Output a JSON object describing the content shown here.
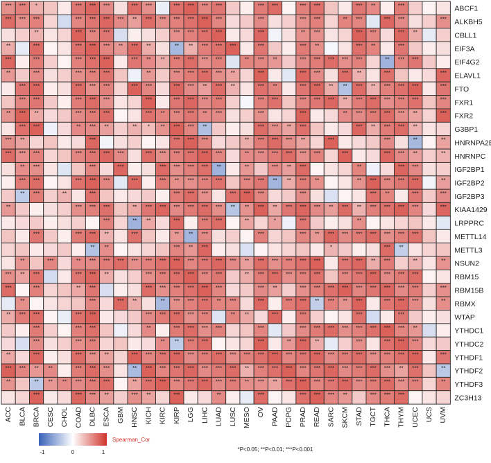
{
  "chart_data": {
    "type": "heatmap",
    "columns": [
      "ACC",
      "BLCA",
      "BRCA",
      "CESC",
      "CHOL",
      "COAD",
      "DLBC",
      "ESCA",
      "GBM",
      "HNSC",
      "KICH",
      "KIRC",
      "KIRP",
      "LGG",
      "LIHC",
      "LUAD",
      "LUSC",
      "MESO",
      "OV",
      "PAAD",
      "PCPG",
      "PRAD",
      "READ",
      "SARC",
      "SKCM",
      "STAD",
      "TGCT",
      "THCA",
      "THYM",
      "UCEC",
      "UCS",
      "UVM"
    ],
    "rows": [
      "ABCF1",
      "ALKBH5",
      "CBLL1",
      "EIF3A",
      "EIF4G2",
      "ELAVL1",
      "FTO",
      "FXR1",
      "FXR2",
      "G3BP1",
      "HNRNPA2B1",
      "HNRNPC",
      "IGF2BP1",
      "IGF2BP2",
      "IGF2BP3",
      "KIAA1429",
      "LRPPRC",
      "METTL14",
      "METTL3",
      "NSUN2",
      "RBM15",
      "RBM15B",
      "RBMX",
      "WTAP",
      "YTHDC1",
      "YTHDC2",
      "YTHDF1",
      "YTHDF2",
      "YTHDF3",
      "ZC3H13"
    ],
    "stars": [
      [
        "***",
        "***",
        "*",
        "",
        "",
        "***",
        "***",
        "***",
        "",
        "***",
        "***",
        "",
        "***",
        "***",
        "***",
        "***",
        "",
        "",
        "***",
        "***",
        "",
        "***",
        "***",
        "",
        "",
        "***",
        "**",
        "",
        "***",
        "",
        "",
        ""
      ],
      [
        "***",
        "***",
        "***",
        "",
        "",
        "***",
        "***",
        "***",
        "***",
        "**",
        "***",
        "***",
        "***",
        "***",
        "***",
        "***",
        "",
        "",
        "***",
        "",
        "",
        "***",
        "***",
        "",
        "**",
        "***",
        "",
        "***",
        "***",
        "",
        "",
        "***"
      ],
      [
        "",
        "",
        "**",
        "",
        "",
        "***",
        "***",
        "***",
        "",
        "",
        "",
        "",
        "***",
        "***",
        "***",
        "***",
        "",
        "",
        "***",
        "",
        "",
        "**",
        "***",
        "",
        "",
        "***",
        "***",
        "",
        "***",
        "**",
        "",
        ""
      ],
      [
        "**",
        "",
        "***",
        "",
        "",
        "***",
        "***",
        "***",
        "**",
        "***",
        "**",
        "",
        "**",
        "**",
        "***",
        "***",
        "***",
        "",
        "***",
        "",
        "",
        "***",
        "**",
        "",
        "",
        "***",
        "**",
        "",
        "***",
        "",
        "",
        ""
      ],
      [
        "***",
        "",
        "***",
        "",
        "",
        "***",
        "***",
        "***",
        "",
        "***",
        "**",
        "**",
        "***",
        "***",
        "***",
        "***",
        "",
        "**",
        "***",
        "**",
        "",
        "***",
        "***",
        "***",
        "***",
        "***",
        "",
        "**",
        "***",
        "***",
        "",
        ""
      ],
      [
        "**",
        "",
        "***",
        "",
        "",
        "***",
        "***",
        "***",
        "",
        "",
        "**",
        "",
        "***",
        "***",
        "***",
        "***",
        "**",
        "",
        "***",
        "",
        "",
        "***",
        "***",
        "",
        "***",
        "**",
        "",
        "***",
        "",
        "",
        "",
        "***"
      ],
      [
        "",
        "***",
        "***",
        "",
        "",
        "***",
        "***",
        "***",
        "",
        "***",
        "***",
        "",
        "***",
        "***",
        "**",
        "***",
        "**",
        "",
        "***",
        "**",
        "",
        "***",
        "***",
        "**",
        "**",
        "***",
        "**",
        "***",
        "***",
        "***",
        "",
        "***"
      ],
      [
        "",
        "***",
        "***",
        "",
        "",
        "***",
        "***",
        "***",
        "",
        "",
        "***",
        "",
        "***",
        "***",
        "***",
        "***",
        "",
        "",
        "***",
        "***",
        "",
        "***",
        "***",
        "***",
        "**",
        "***",
        "***",
        "***",
        "***",
        "***",
        "",
        "***"
      ],
      [
        "**",
        "***",
        "**",
        "",
        "",
        "***",
        "***",
        "***",
        "",
        "",
        "***",
        "**",
        "***",
        "***",
        "**",
        "***",
        "",
        "",
        "***",
        "",
        "",
        "***",
        "",
        "",
        "**",
        "***",
        "***",
        "***",
        "***",
        "**",
        "",
        "***"
      ],
      [
        "",
        "***",
        "***",
        "",
        "",
        "**",
        "***",
        "**",
        "",
        "**",
        "*",
        "**",
        "***",
        "***",
        "**",
        "",
        "",
        "",
        "***",
        "***",
        "**",
        "***",
        "",
        "",
        "",
        "***",
        "**",
        "***",
        "***",
        "**",
        "",
        ""
      ],
      [
        "***",
        "**",
        "",
        "",
        "",
        "",
        "***",
        "",
        "",
        "",
        "",
        "",
        "***",
        "***",
        "***",
        "",
        "",
        "**",
        "***",
        "***",
        "***",
        "**",
        "",
        "***",
        "",
        "",
        "",
        "***",
        "",
        "**",
        "",
        "**"
      ],
      [
        "***",
        "***",
        "***",
        "",
        "",
        "***",
        "***",
        "***",
        "***",
        "",
        "***",
        "***",
        "***",
        "***",
        "***",
        "***",
        "",
        "**",
        "***",
        "***",
        "***",
        "***",
        "***",
        "",
        "***",
        "",
        "",
        "***",
        "***",
        "**",
        "",
        "**"
      ],
      [
        "",
        "**",
        "***",
        "",
        "",
        "",
        "***",
        "",
        "***",
        "",
        "",
        "***",
        "***",
        "***",
        "***",
        "**",
        "",
        "**",
        "",
        "***",
        "**",
        "***",
        "",
        "",
        "",
        "**",
        "",
        "",
        "***",
        "***",
        "",
        ""
      ],
      [
        "",
        "***",
        "***",
        "",
        "",
        "***",
        "***",
        "***",
        "",
        "***",
        "",
        "***",
        "**",
        "***",
        "***",
        "***",
        "",
        "***",
        "***",
        "**",
        "**",
        "***",
        "**",
        "",
        "",
        "**",
        "***",
        "***",
        "***",
        "***",
        "",
        "**"
      ],
      [
        "",
        "**",
        "***",
        "",
        "**",
        "",
        "***",
        "",
        "",
        "",
        "",
        "",
        "***",
        "***",
        "***",
        "",
        "***",
        "***",
        "***",
        "",
        "",
        "***",
        "",
        "",
        "",
        "",
        "***",
        "**",
        "",
        "***",
        "",
        "***"
      ],
      [
        "**",
        "",
        "",
        "",
        "",
        "***",
        "***",
        "***",
        "",
        "**",
        "***",
        "***",
        "***",
        "***",
        "***",
        "***",
        "**",
        "**",
        "***",
        "**",
        "***",
        "***",
        "***",
        "**",
        "***",
        "**",
        "***",
        "***",
        "***",
        "***",
        "",
        "***"
      ],
      [
        "",
        "",
        "",
        "",
        "",
        "",
        "",
        "***",
        "",
        "**",
        "**",
        "",
        "***",
        "",
        "***",
        "***",
        "",
        "**",
        "",
        "*",
        "",
        "***",
        "",
        "",
        "",
        "**",
        "",
        "",
        "",
        "",
        "",
        ""
      ],
      [
        "",
        "",
        "***",
        "",
        "",
        "***",
        "***",
        "**",
        "",
        "***",
        "",
        "",
        "**",
        "**",
        "***",
        "",
        "",
        "",
        "***",
        "",
        "",
        "***",
        "**",
        "***",
        "***",
        "***",
        "***",
        "***",
        "***",
        "***",
        "",
        ""
      ],
      [
        "",
        "",
        "",
        "",
        "",
        "",
        "**",
        "**",
        "",
        "",
        "",
        "",
        "***",
        "**",
        "***",
        "",
        "",
        "",
        "",
        "",
        "",
        "",
        "",
        "*",
        "",
        "",
        "",
        "***",
        "**",
        "",
        "",
        ""
      ],
      [
        "",
        "**",
        "",
        "***",
        "",
        "**",
        "***",
        "***",
        "***",
        "***",
        "***",
        "***",
        "***",
        "***",
        "***",
        "***",
        "***",
        "**",
        "***",
        "***",
        "***",
        "***",
        "***",
        "",
        "***",
        "***",
        "**",
        "***",
        "",
        "**",
        "",
        "**"
      ],
      [
        "***",
        "**",
        "***",
        "",
        "",
        "***",
        "***",
        "**",
        "",
        "",
        "***",
        "***",
        "***",
        "***",
        "***",
        "***",
        "",
        "**",
        "***",
        "***",
        "***",
        "***",
        "***",
        "",
        "***",
        "***",
        "***",
        "***",
        "***",
        "***",
        "",
        ""
      ],
      [
        "***",
        "",
        "***",
        "",
        "",
        "**",
        "***",
        "",
        "",
        "",
        "***",
        "***",
        "***",
        "***",
        "***",
        "***",
        "",
        "",
        "***",
        "**",
        "",
        "***",
        "***",
        "***",
        "***",
        "***",
        "***",
        "***",
        "***",
        "***",
        "",
        "***"
      ],
      [
        "",
        "**",
        "",
        "",
        "",
        "",
        "***",
        "",
        "***",
        "**",
        "",
        "**",
        "***",
        "***",
        "***",
        "**",
        "***",
        "",
        "***",
        "",
        "***",
        "***",
        "**",
        "***",
        "**",
        "***",
        "",
        "***",
        "***",
        "***",
        "",
        "**"
      ],
      [
        "**",
        "***",
        "***",
        "",
        "",
        "***",
        "***",
        "",
        "",
        "",
        "***",
        "***",
        "***",
        "***",
        "***",
        "",
        "**",
        "**",
        "",
        "***",
        "",
        "***",
        "",
        "",
        "",
        "***",
        "",
        "",
        "***",
        "",
        "",
        ""
      ],
      [
        "",
        "",
        "***",
        "",
        "",
        "***",
        "***",
        "",
        "",
        "",
        "**",
        "",
        "***",
        "***",
        "***",
        "***",
        "",
        "",
        "***",
        "",
        "",
        "***",
        "***",
        "***",
        "***",
        "***",
        "***",
        "***",
        "***",
        "**",
        "",
        ""
      ],
      [
        "",
        "",
        "***",
        "",
        "",
        "***",
        "***",
        "",
        "",
        "",
        "",
        "**",
        "**",
        "***",
        "***",
        "",
        "",
        "",
        "***",
        "",
        "**",
        "***",
        "**",
        "",
        "",
        "***",
        "",
        "***",
        "***",
        "***",
        "",
        ""
      ],
      [
        "**",
        "",
        "***",
        "",
        "",
        "***",
        "***",
        "**",
        "",
        "***",
        "***",
        "***",
        "***",
        "***",
        "***",
        "***",
        "***",
        "***",
        "***",
        "***",
        "***",
        "***",
        "***",
        "***",
        "***",
        "***",
        "***",
        "***",
        "***",
        "***",
        "",
        "***"
      ],
      [
        "***",
        "***",
        "**",
        "**",
        "",
        "***",
        "***",
        "***",
        "",
        "**",
        "***",
        "***",
        "***",
        "***",
        "***",
        "***",
        "***",
        "**",
        "***",
        "***",
        "***",
        "***",
        "***",
        "***",
        "***",
        "***",
        "***",
        "***",
        "**",
        "***",
        "",
        "**"
      ],
      [
        "**",
        "",
        "**",
        "**",
        "**",
        "***",
        "***",
        "***",
        "",
        "**",
        "***",
        "***",
        "***",
        "***",
        "***",
        "***",
        "***",
        "**",
        "***",
        "**",
        "***",
        "***",
        "***",
        "***",
        "***",
        "***",
        "***",
        "***",
        "***",
        "***",
        "",
        "**"
      ],
      [
        "",
        "",
        "***",
        "",
        "",
        "***",
        "***",
        "**",
        "",
        "***",
        "**",
        "",
        "***",
        "",
        "",
        "**",
        "",
        "",
        "***",
        "",
        "",
        "***",
        "***",
        "***",
        "**",
        "",
        "***",
        "***",
        "***",
        "",
        "",
        ""
      ]
    ],
    "colorscale": {
      "min": -1,
      "mid": 0,
      "max": 1,
      "low_color": "#3a62b8",
      "mid_color": "#ffffff",
      "high_color": "#d0342c"
    },
    "legend": {
      "title": "Spearman_Cor",
      "ticks": [
        "-1",
        "0",
        "1"
      ]
    },
    "footnote": "*P<0.05; **P<0.01; ***P<0.001"
  }
}
